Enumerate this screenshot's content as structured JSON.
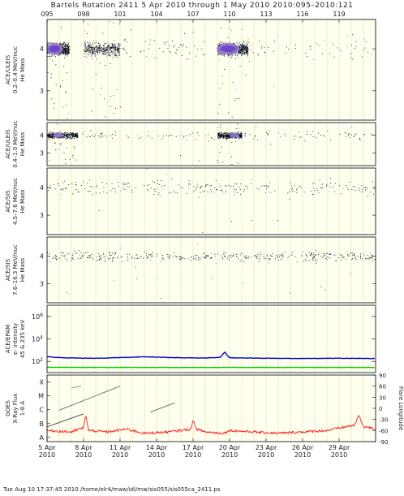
{
  "header": {
    "title": "Bartels Rotation 2411     5 Apr 2010 through 1 May 2010     2010:095–2010:121"
  },
  "footer": {
    "text": "Tue Aug 10 17:37:45 2010    /home/elr4/maw/idl/mw/sis055/sis055ca_2411.ps"
  },
  "chart_data": {
    "type": "scatter",
    "x_axis": {
      "top_ticks": [
        "095",
        "098",
        "101",
        "104",
        "107",
        "110",
        "113",
        "116",
        "119"
      ],
      "top_tick_days": [
        95,
        98,
        101,
        104,
        107,
        110,
        113,
        116,
        119
      ],
      "bottom_labels": [
        {
          "day": 95,
          "date": "5 Apr",
          "year": "2010"
        },
        {
          "day": 98,
          "date": "8 Apr",
          "year": "2010"
        },
        {
          "day": 101,
          "date": "11 Apr",
          "year": "2010"
        },
        {
          "day": 104,
          "date": "14 Apr",
          "year": "2010"
        },
        {
          "day": 107,
          "date": "17 Apr",
          "year": "2010"
        },
        {
          "day": 110,
          "date": "20 Apr",
          "year": "2010"
        },
        {
          "day": 113,
          "date": "23 Apr",
          "year": "2010"
        },
        {
          "day": 116,
          "date": "26 Apr",
          "year": "2010"
        },
        {
          "day": 119,
          "date": "29 Apr",
          "year": "2010"
        }
      ],
      "range_doy": [
        95,
        122
      ]
    },
    "panels": [
      {
        "id": "uleis-low",
        "ylabel": [
          "ACE/ULEIS",
          "0.2–0.4 MeV/nuc",
          "He Mass"
        ],
        "yticks": [
          "4",
          "3"
        ],
        "ytick_values": [
          4,
          3
        ],
        "ylim": [
          2.3,
          4.7
        ],
        "clusters": [
          {
            "day_start": 95,
            "day_end": 96.8,
            "mass": 4.0,
            "density": "very high"
          },
          {
            "day_start": 98,
            "day_end": 101,
            "mass": 4.0,
            "density": "high"
          },
          {
            "day_start": 101,
            "day_end": 108,
            "mass": 4.0,
            "density": "low"
          },
          {
            "day_start": 109,
            "day_end": 111.5,
            "mass": 4.0,
            "density": "very high"
          },
          {
            "day_start": 111.5,
            "day_end": 122,
            "mass": 4.0,
            "density": "low"
          }
        ]
      },
      {
        "id": "uleis-high",
        "ylabel": [
          "ACE/ULEIS",
          "0.4–1.0 MeV/nuc",
          "He Mass"
        ],
        "yticks": [
          "4",
          "3"
        ],
        "ytick_values": [
          4,
          3
        ],
        "ylim": [
          2.3,
          4.7
        ],
        "clusters": [
          {
            "day_start": 95,
            "day_end": 97.5,
            "mass": 4.0,
            "density": "high"
          },
          {
            "day_start": 97.5,
            "day_end": 109,
            "mass": 4.0,
            "density": "low"
          },
          {
            "day_start": 109,
            "day_end": 111,
            "mass": 4.0,
            "density": "high"
          },
          {
            "day_start": 111,
            "day_end": 122,
            "mass": 4.0,
            "density": "low"
          }
        ]
      },
      {
        "id": "sis-low",
        "ylabel": [
          "ACE/SIS",
          "4.5–7.6 MeV/nuc",
          "He Mass"
        ],
        "yticks": [
          "4",
          "3"
        ],
        "ytick_values": [
          4,
          3
        ],
        "ylim": [
          2.3,
          4.7
        ],
        "clusters": [
          {
            "day_start": 95,
            "day_end": 122,
            "mass": 4.0,
            "density": "medium"
          }
        ]
      },
      {
        "id": "sis-high",
        "ylabel": [
          "ACE/SIS",
          "7.6–16.3 MeV/nuc",
          "He Mass"
        ],
        "yticks": [
          "4",
          "3"
        ],
        "ytick_values": [
          4,
          3
        ],
        "ylim": [
          2.3,
          4.7
        ],
        "clusters": [
          {
            "day_start": 95,
            "day_end": 122,
            "mass": 4.0,
            "density": "high"
          }
        ]
      },
      {
        "id": "epam",
        "ylabel": [
          "ACE/EPAM",
          "e- intensity",
          "45 & 235 keV"
        ],
        "yticks": [
          "10^6",
          "10^4",
          "10^2"
        ],
        "ytick_values": [
          1000000,
          10000,
          100
        ],
        "ylim": [
          10,
          10000000
        ],
        "scale": "log",
        "series": [
          {
            "color": "#0000cc",
            "days": [
              95,
              96,
              98,
              100,
              103,
              106,
              108,
              109.2,
              109.6,
              110,
              113,
              116,
              119,
              122
            ],
            "values": [
              260,
              220,
              190,
              200,
              260,
              210,
              200,
              220,
              650,
              210,
              190,
              180,
              190,
              180
            ]
          },
          {
            "color": "#00cc00",
            "days": [
              95,
              100,
              105,
              110,
              115,
              122
            ],
            "values": [
              30,
              29,
              29,
              29,
              29,
              29
            ]
          }
        ]
      },
      {
        "id": "goes",
        "ylabel": [
          "GOES",
          "X-Ray Flux",
          "1-8 A"
        ],
        "yticks": [
          "X",
          "M",
          "C",
          "B",
          "A"
        ],
        "right_ylabel": "Flare Longitude",
        "right_ticks": [
          "90",
          "60",
          "30",
          "0",
          "-30",
          "-60",
          "-90"
        ],
        "right_tick_values": [
          90,
          60,
          30,
          0,
          -30,
          -60,
          -90
        ],
        "ylim": [
          -8.3,
          -3.5
        ],
        "scale": "log",
        "xray": {
          "color": "#ff0000",
          "days": [
            95,
            97,
            98,
            98.2,
            98.4,
            100,
            101.5,
            103,
            105,
            106.8,
            107,
            107.3,
            108,
            109.5,
            110,
            112,
            114,
            116,
            118,
            120.3,
            120.6,
            121,
            122
          ],
          "class_levels": [
            -7.5,
            -7.6,
            -7.3,
            -6.4,
            -7.5,
            -7.6,
            -7.4,
            -7.7,
            -7.6,
            -7.4,
            -6.8,
            -7.4,
            -7.6,
            -7.7,
            -7.5,
            -7.6,
            -7.7,
            -7.6,
            -7.5,
            -7.1,
            -6.4,
            -7.2,
            -7.4
          ]
        },
        "flare_tracks": [
          {
            "day_start": 96,
            "day_end": 101,
            "long_start": -5,
            "long_end": 60,
            "color": "#666666"
          },
          {
            "day_start": 103.5,
            "day_end": 105.5,
            "long_start": -10,
            "long_end": 15,
            "color": "#666666"
          },
          {
            "day_start": 95,
            "day_end": 98,
            "long_start": -50,
            "long_end": -15,
            "color": "#444444"
          },
          {
            "day_start": 97,
            "day_end": 97.8,
            "long_start": 55,
            "long_end": 60,
            "color": "#888888"
          }
        ]
      }
    ]
  }
}
